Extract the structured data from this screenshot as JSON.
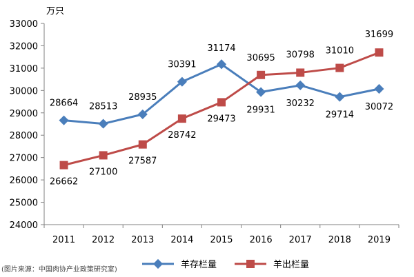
{
  "chart_data": {
    "type": "line",
    "y_unit": "万只",
    "categories": [
      "2011",
      "2012",
      "2013",
      "2014",
      "2015",
      "2016",
      "2017",
      "2018",
      "2019"
    ],
    "yticks": [
      "33000",
      "32000",
      "31000",
      "30000",
      "29000",
      "28000",
      "27000",
      "26000",
      "25000",
      "24000"
    ],
    "ylim": [
      24000,
      33000
    ],
    "series": [
      {
        "name": "羊存栏量",
        "color": "#4A7EBB",
        "marker": "diamond",
        "values": [
          28664,
          28513,
          28935,
          30391,
          31174,
          29931,
          30232,
          29714,
          30072
        ],
        "labels": [
          "28664",
          "28513",
          "28935",
          "30391",
          "31174",
          "29931",
          "30232",
          "29714",
          "30072"
        ]
      },
      {
        "name": "羊出栏量",
        "color": "#BE4B48",
        "marker": "square",
        "values": [
          26662,
          27100,
          27587,
          28742,
          29473,
          30695,
          30798,
          31010,
          31699
        ],
        "labels": [
          "26662",
          "27100",
          "27587",
          "28742",
          "29473",
          "30695",
          "30798",
          "31010",
          "31699"
        ]
      }
    ],
    "grid": false,
    "legend_position": "bottom",
    "source_note": "(图片来源：中国肉协产业政策研究室)"
  }
}
